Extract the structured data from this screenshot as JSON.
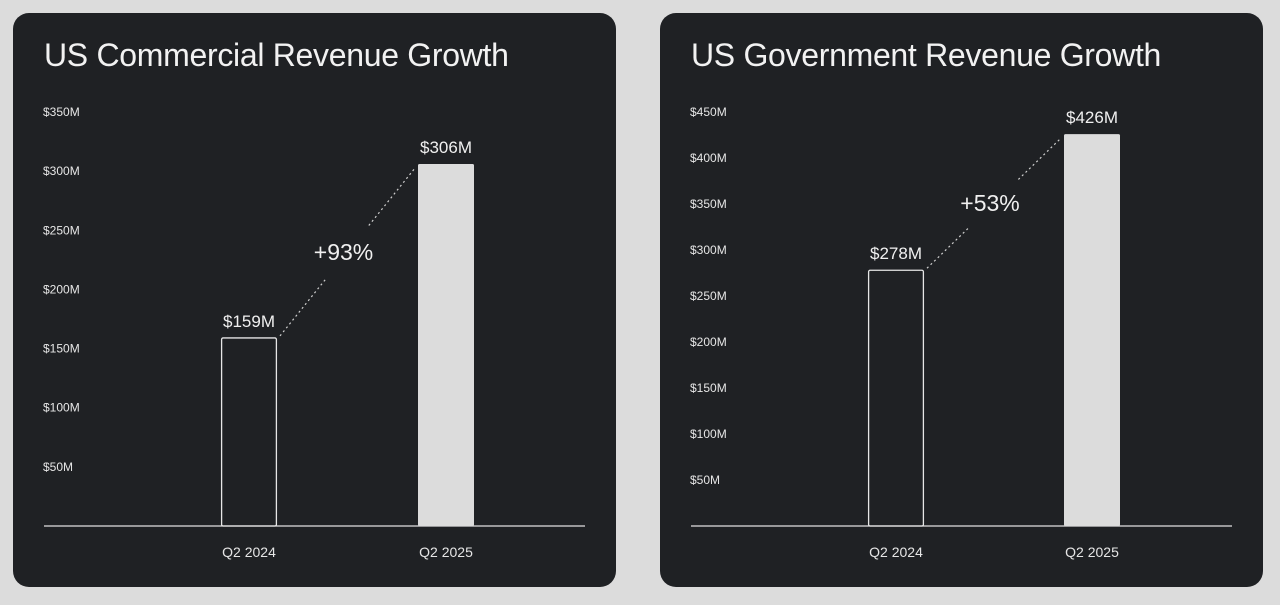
{
  "chart_data": [
    {
      "type": "bar",
      "title": "US Commercial Revenue Growth",
      "categories": [
        "Q2 2024",
        "Q2 2025"
      ],
      "values": [
        159,
        306
      ],
      "value_labels": [
        "$159M",
        "$306M"
      ],
      "unit": "$M",
      "growth_label": "+93%",
      "y_ticks": [
        50,
        100,
        150,
        200,
        250,
        300,
        350
      ],
      "y_tick_labels": [
        "$50M",
        "$100M",
        "$150M",
        "$200M",
        "$250M",
        "$300M",
        "$350M"
      ],
      "ylim": [
        0,
        350
      ],
      "xlabel": "",
      "ylabel": "",
      "grid": false,
      "legend": "none",
      "colors": {
        "first_bar": "outline",
        "second_bar": "#dcdcdc",
        "background": "#1f2124",
        "text": "#f0f0f0"
      }
    },
    {
      "type": "bar",
      "title": "US Government Revenue Growth",
      "categories": [
        "Q2 2024",
        "Q2 2025"
      ],
      "values": [
        278,
        426
      ],
      "value_labels": [
        "$278M",
        "$426M"
      ],
      "unit": "$M",
      "growth_label": "+53%",
      "y_ticks": [
        50,
        100,
        150,
        200,
        250,
        300,
        350,
        400,
        450
      ],
      "y_tick_labels": [
        "$50M",
        "$100M",
        "$150M",
        "$200M",
        "$250M",
        "$300M",
        "$350M",
        "$400M",
        "$450M"
      ],
      "ylim": [
        0,
        450
      ],
      "xlabel": "",
      "ylabel": "",
      "grid": false,
      "legend": "none",
      "colors": {
        "first_bar": "outline",
        "second_bar": "#dcdcdc",
        "background": "#1f2124",
        "text": "#f0f0f0"
      }
    }
  ]
}
